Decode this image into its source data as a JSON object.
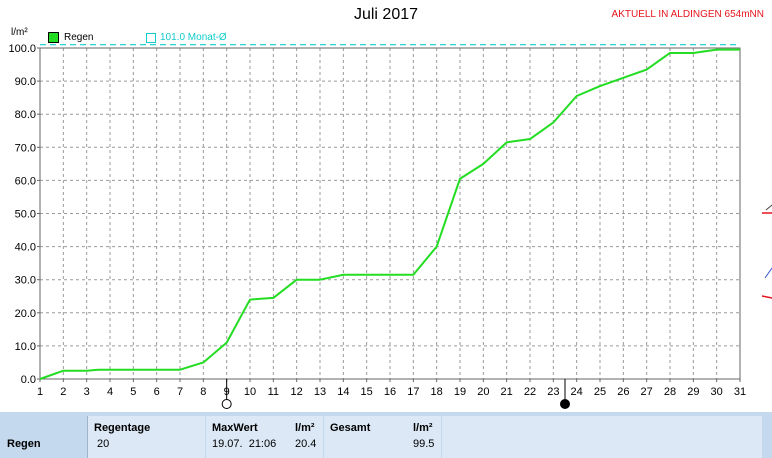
{
  "title": "Juli 2017",
  "station_label": "AKTUELL IN ALDINGEN 654mNN",
  "unit_label": "l/m²",
  "legend": {
    "rain_label": "Regen",
    "month_label": "101.0 Monat-Ø"
  },
  "colors": {
    "rain_line": "#22dd22",
    "month_line": "#11cccc",
    "grid": "#9a9a9a",
    "station_text": "#e8141e",
    "panel_bg": "#c4d9ee"
  },
  "icons": [
    "moon-empty-icon",
    "moon-full-icon"
  ],
  "chart_data": {
    "type": "line",
    "title": "Juli 2017",
    "ylabel": "l/m²",
    "xlim": [
      1,
      31
    ],
    "ylim": [
      0,
      100
    ],
    "x_ticks": [
      1,
      2,
      3,
      4,
      5,
      6,
      7,
      8,
      9,
      10,
      11,
      12,
      13,
      14,
      15,
      16,
      17,
      18,
      19,
      20,
      21,
      22,
      23,
      24,
      25,
      26,
      27,
      28,
      29,
      30,
      31
    ],
    "y_ticks": [
      "0.0",
      "10.0",
      "20.0",
      "30.0",
      "40.0",
      "50.0",
      "60.0",
      "70.0",
      "80.0",
      "90.0",
      "100.0"
    ],
    "y_tick_values": [
      0,
      10,
      20,
      30,
      40,
      50,
      60,
      70,
      80,
      90,
      100
    ],
    "grid": true,
    "series": [
      {
        "name": "Regen",
        "points": [
          [
            1,
            0
          ],
          [
            2,
            2.5
          ],
          [
            3,
            2.5
          ],
          [
            3.5,
            2.8
          ],
          [
            7,
            2.8
          ],
          [
            8,
            5
          ],
          [
            9,
            11
          ],
          [
            10,
            24
          ],
          [
            11,
            24.5
          ],
          [
            12,
            30
          ],
          [
            13,
            30
          ],
          [
            14,
            31.5
          ],
          [
            17,
            31.5
          ],
          [
            18,
            40
          ],
          [
            19,
            60.5
          ],
          [
            20,
            65
          ],
          [
            21,
            71.5
          ],
          [
            22,
            72.5
          ],
          [
            23,
            77.5
          ],
          [
            24,
            85.5
          ],
          [
            25,
            88.5
          ],
          [
            26,
            91
          ],
          [
            27,
            93.5
          ],
          [
            28,
            98.5
          ],
          [
            29,
            98.5
          ],
          [
            30,
            99.5
          ],
          [
            31,
            99.5
          ]
        ]
      },
      {
        "name": "101.0 Monat-Ø",
        "points": [
          [
            1,
            101
          ],
          [
            31,
            101
          ]
        ]
      }
    ],
    "moon_phases": [
      {
        "type": "empty",
        "x": 9
      },
      {
        "type": "full",
        "x": 23.5
      }
    ]
  },
  "stats_panel": {
    "row_label": "Regen",
    "regentage_header": "Regentage",
    "regentage_value": "20",
    "maxwert_header": "MaxWert",
    "maxwert_unit": "l/m²",
    "maxwert_time": "19.07.  21:06",
    "maxwert_value": "20.4",
    "gesamt_header": "Gesamt",
    "gesamt_unit": "l/m²",
    "gesamt_value": "99.5"
  }
}
